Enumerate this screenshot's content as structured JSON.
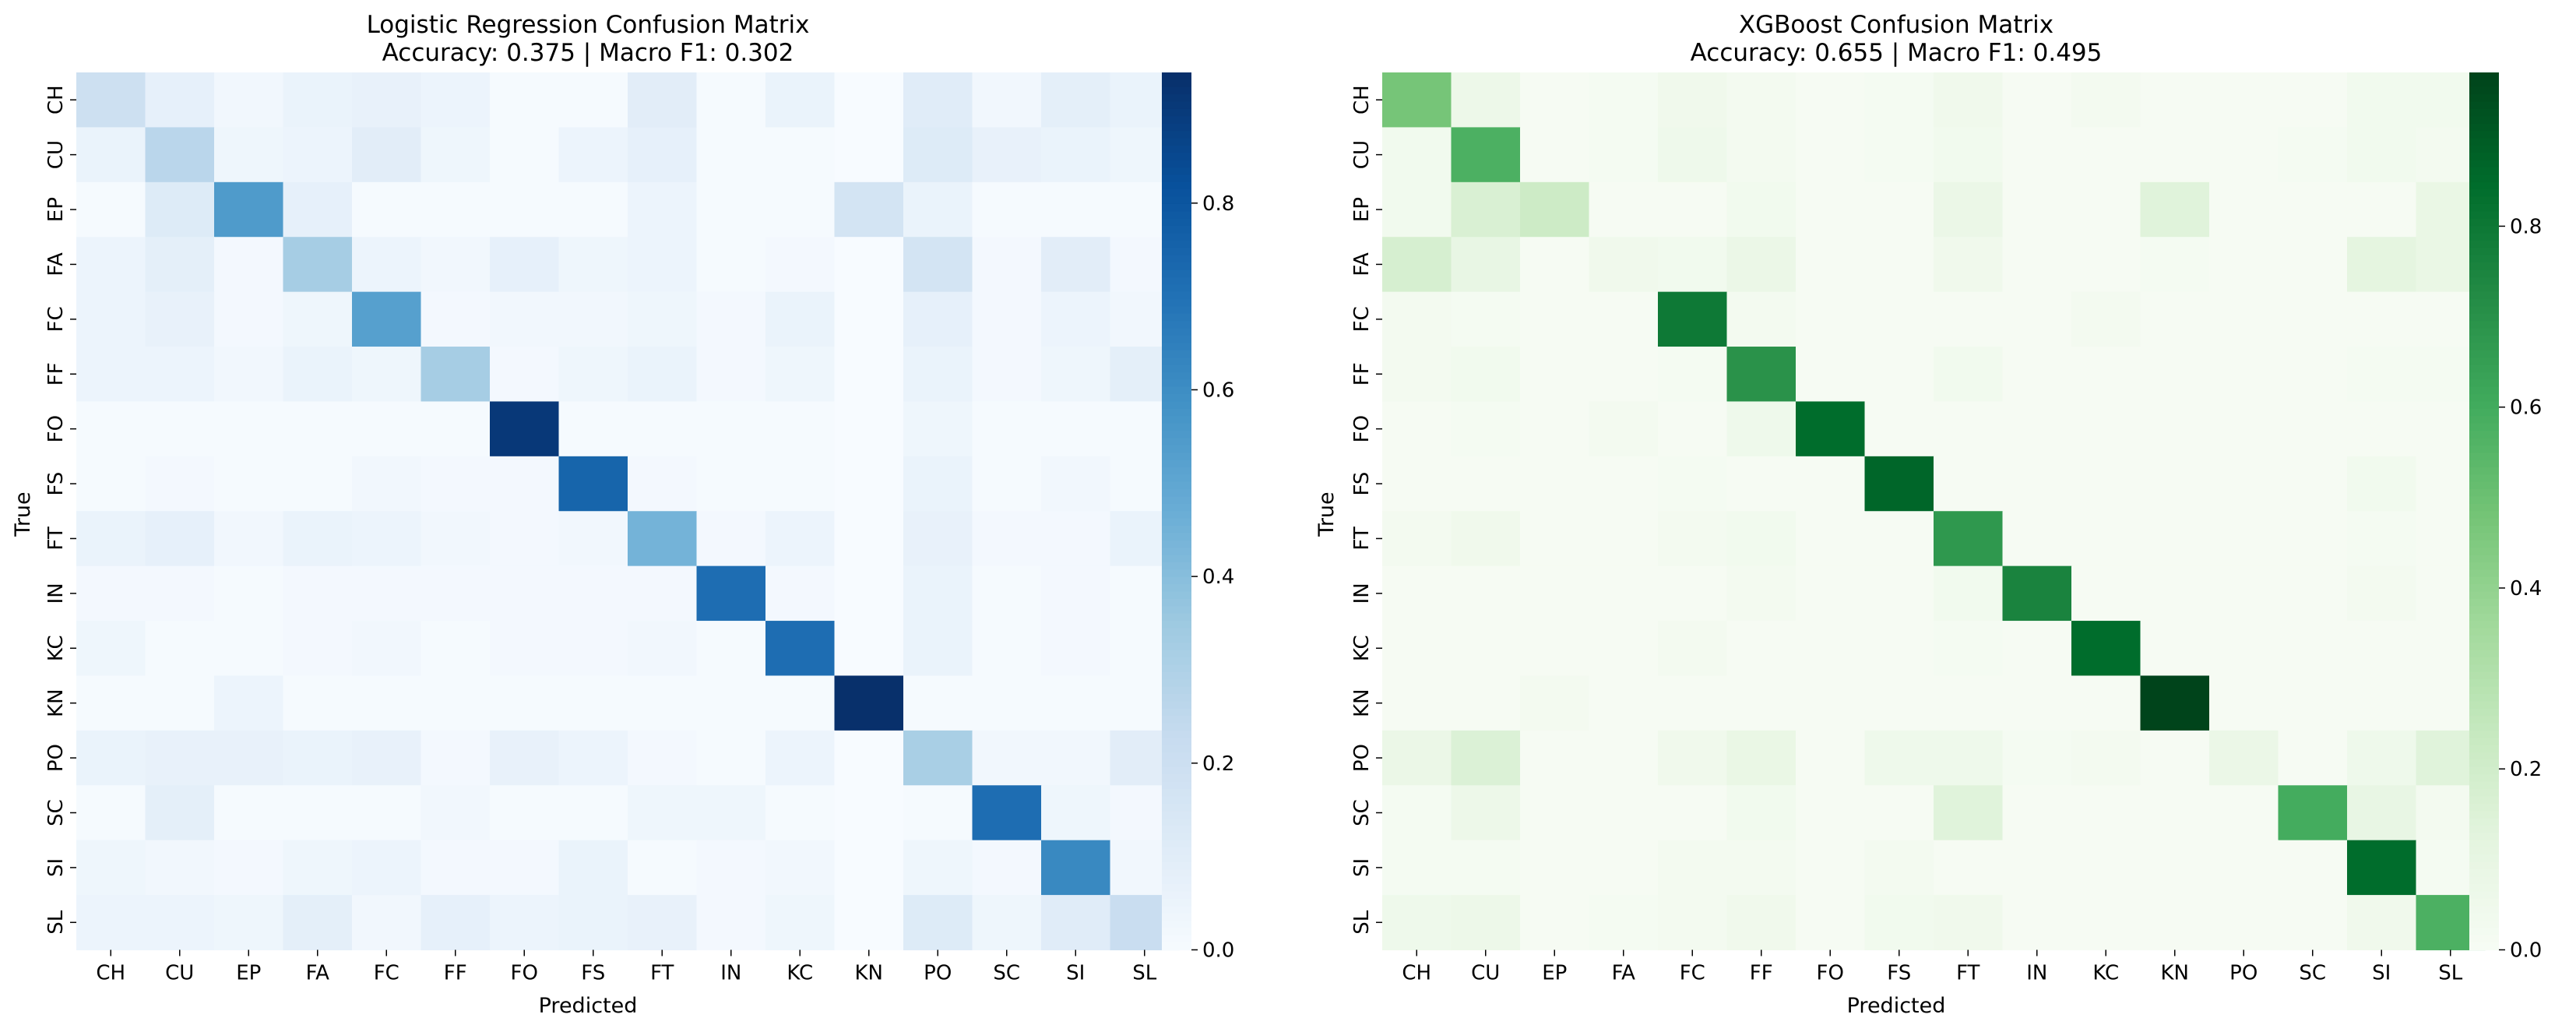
{
  "chart_data": [
    {
      "type": "heatmap",
      "title_line1": "Logistic Regression Confusion Matrix",
      "title_line2": "Accuracy: 0.375 | Macro F1: 0.302",
      "xlabel": "Predicted",
      "ylabel": "True",
      "x_categories": [
        "CH",
        "CU",
        "EP",
        "FA",
        "FC",
        "FF",
        "FO",
        "FS",
        "FT",
        "IN",
        "KC",
        "KN",
        "PO",
        "SC",
        "SI",
        "SL"
      ],
      "y_categories": [
        "CH",
        "CU",
        "EP",
        "FA",
        "FC",
        "FF",
        "FO",
        "FS",
        "FT",
        "IN",
        "KC",
        "KN",
        "PO",
        "SC",
        "SI",
        "SL"
      ],
      "colormap": "Blues",
      "colorbar": {
        "min": 0.0,
        "max": 0.94,
        "ticks": [
          "0.0",
          "0.2",
          "0.4",
          "0.6",
          "0.8"
        ]
      },
      "matrix": [
        [
          0.2,
          0.08,
          0.03,
          0.06,
          0.07,
          0.05,
          0.01,
          0.01,
          0.1,
          0.01,
          0.06,
          0.0,
          0.11,
          0.03,
          0.09,
          0.06
        ],
        [
          0.06,
          0.27,
          0.04,
          0.05,
          0.1,
          0.04,
          0.01,
          0.05,
          0.08,
          0.01,
          0.01,
          0.0,
          0.12,
          0.07,
          0.06,
          0.04
        ],
        [
          0.01,
          0.12,
          0.55,
          0.08,
          0.01,
          0.01,
          0.01,
          0.01,
          0.05,
          0.01,
          0.01,
          0.17,
          0.06,
          0.01,
          0.01,
          0.01
        ],
        [
          0.05,
          0.09,
          0.02,
          0.33,
          0.05,
          0.03,
          0.08,
          0.04,
          0.05,
          0.01,
          0.02,
          0.0,
          0.17,
          0.02,
          0.1,
          0.02
        ],
        [
          0.05,
          0.07,
          0.02,
          0.04,
          0.53,
          0.02,
          0.03,
          0.03,
          0.04,
          0.02,
          0.06,
          0.0,
          0.08,
          0.02,
          0.05,
          0.03
        ],
        [
          0.05,
          0.05,
          0.03,
          0.06,
          0.04,
          0.33,
          0.02,
          0.04,
          0.06,
          0.02,
          0.04,
          0.0,
          0.06,
          0.02,
          0.04,
          0.09
        ],
        [
          0.01,
          0.01,
          0.01,
          0.01,
          0.01,
          0.01,
          0.91,
          0.01,
          0.01,
          0.01,
          0.01,
          0.0,
          0.04,
          0.01,
          0.01,
          0.01
        ],
        [
          0.01,
          0.02,
          0.01,
          0.01,
          0.03,
          0.02,
          0.02,
          0.75,
          0.02,
          0.01,
          0.01,
          0.0,
          0.06,
          0.01,
          0.03,
          0.01
        ],
        [
          0.06,
          0.08,
          0.03,
          0.06,
          0.05,
          0.03,
          0.02,
          0.03,
          0.45,
          0.02,
          0.05,
          0.0,
          0.07,
          0.02,
          0.02,
          0.06
        ],
        [
          0.02,
          0.02,
          0.01,
          0.02,
          0.02,
          0.02,
          0.02,
          0.02,
          0.02,
          0.72,
          0.02,
          0.0,
          0.06,
          0.01,
          0.02,
          0.01
        ],
        [
          0.04,
          0.01,
          0.01,
          0.02,
          0.03,
          0.01,
          0.02,
          0.02,
          0.03,
          0.01,
          0.72,
          0.0,
          0.06,
          0.01,
          0.02,
          0.01
        ],
        [
          0.01,
          0.01,
          0.05,
          0.01,
          0.01,
          0.01,
          0.01,
          0.01,
          0.01,
          0.01,
          0.01,
          0.94,
          0.01,
          0.01,
          0.01,
          0.01
        ],
        [
          0.06,
          0.07,
          0.07,
          0.06,
          0.07,
          0.02,
          0.07,
          0.05,
          0.02,
          0.01,
          0.05,
          0.0,
          0.32,
          0.03,
          0.03,
          0.1
        ],
        [
          0.01,
          0.09,
          0.01,
          0.01,
          0.01,
          0.03,
          0.01,
          0.01,
          0.04,
          0.04,
          0.01,
          0.0,
          0.01,
          0.72,
          0.04,
          0.02
        ],
        [
          0.04,
          0.03,
          0.02,
          0.04,
          0.05,
          0.02,
          0.02,
          0.06,
          0.01,
          0.02,
          0.03,
          0.0,
          0.04,
          0.02,
          0.62,
          0.03
        ],
        [
          0.05,
          0.05,
          0.04,
          0.09,
          0.03,
          0.08,
          0.05,
          0.06,
          0.07,
          0.02,
          0.04,
          0.0,
          0.12,
          0.04,
          0.11,
          0.22
        ]
      ]
    },
    {
      "type": "heatmap",
      "title_line1": "XGBoost Confusion Matrix",
      "title_line2": "Accuracy: 0.655 | Macro F1: 0.495",
      "xlabel": "Predicted",
      "ylabel": "True",
      "x_categories": [
        "CH",
        "CU",
        "EP",
        "FA",
        "FC",
        "FF",
        "FO",
        "FS",
        "FT",
        "IN",
        "KC",
        "KN",
        "PO",
        "SC",
        "SI",
        "SL"
      ],
      "y_categories": [
        "CH",
        "CU",
        "EP",
        "FA",
        "FC",
        "FF",
        "FO",
        "FS",
        "FT",
        "IN",
        "KC",
        "KN",
        "PO",
        "SC",
        "SI",
        "SL"
      ],
      "colormap": "Greens",
      "colorbar": {
        "min": 0.0,
        "max": 0.97,
        "ticks": [
          "0.0",
          "0.2",
          "0.4",
          "0.6",
          "0.8"
        ]
      },
      "matrix": [
        [
          0.48,
          0.07,
          0.01,
          0.02,
          0.05,
          0.03,
          0.01,
          0.02,
          0.05,
          0.01,
          0.03,
          0.01,
          0.01,
          0.01,
          0.04,
          0.04
        ],
        [
          0.04,
          0.58,
          0.01,
          0.02,
          0.06,
          0.03,
          0.01,
          0.02,
          0.04,
          0.01,
          0.01,
          0.01,
          0.01,
          0.02,
          0.04,
          0.03
        ],
        [
          0.04,
          0.17,
          0.22,
          0.01,
          0.01,
          0.04,
          0.01,
          0.01,
          0.08,
          0.01,
          0.01,
          0.14,
          0.01,
          0.01,
          0.01,
          0.09
        ],
        [
          0.18,
          0.1,
          0.01,
          0.05,
          0.04,
          0.08,
          0.01,
          0.01,
          0.05,
          0.01,
          0.01,
          0.02,
          0.01,
          0.01,
          0.12,
          0.09
        ],
        [
          0.03,
          0.02,
          0.01,
          0.01,
          0.8,
          0.03,
          0.01,
          0.01,
          0.01,
          0.01,
          0.03,
          0.01,
          0.01,
          0.01,
          0.01,
          0.01
        ],
        [
          0.03,
          0.04,
          0.01,
          0.01,
          0.02,
          0.7,
          0.01,
          0.01,
          0.04,
          0.01,
          0.01,
          0.01,
          0.01,
          0.01,
          0.02,
          0.02
        ],
        [
          0.01,
          0.02,
          0.01,
          0.03,
          0.01,
          0.06,
          0.85,
          0.01,
          0.01,
          0.01,
          0.01,
          0.01,
          0.01,
          0.01,
          0.01,
          0.01
        ],
        [
          0.01,
          0.01,
          0.01,
          0.01,
          0.02,
          0.01,
          0.01,
          0.87,
          0.01,
          0.01,
          0.01,
          0.01,
          0.01,
          0.01,
          0.04,
          0.01
        ],
        [
          0.03,
          0.05,
          0.01,
          0.01,
          0.03,
          0.04,
          0.01,
          0.01,
          0.68,
          0.01,
          0.01,
          0.01,
          0.01,
          0.01,
          0.02,
          0.01
        ],
        [
          0.01,
          0.01,
          0.01,
          0.01,
          0.01,
          0.03,
          0.01,
          0.01,
          0.04,
          0.76,
          0.01,
          0.01,
          0.01,
          0.01,
          0.03,
          0.01
        ],
        [
          0.01,
          0.01,
          0.01,
          0.01,
          0.03,
          0.01,
          0.01,
          0.01,
          0.02,
          0.01,
          0.85,
          0.01,
          0.01,
          0.01,
          0.01,
          0.01
        ],
        [
          0.01,
          0.01,
          0.03,
          0.01,
          0.01,
          0.01,
          0.01,
          0.01,
          0.01,
          0.01,
          0.01,
          0.97,
          0.01,
          0.01,
          0.01,
          0.01
        ],
        [
          0.08,
          0.16,
          0.01,
          0.01,
          0.05,
          0.09,
          0.01,
          0.06,
          0.06,
          0.02,
          0.03,
          0.01,
          0.08,
          0.01,
          0.06,
          0.14
        ],
        [
          0.02,
          0.07,
          0.01,
          0.01,
          0.01,
          0.04,
          0.01,
          0.01,
          0.14,
          0.01,
          0.01,
          0.01,
          0.01,
          0.6,
          0.1,
          0.03
        ],
        [
          0.02,
          0.02,
          0.01,
          0.01,
          0.03,
          0.03,
          0.01,
          0.03,
          0.01,
          0.01,
          0.01,
          0.01,
          0.01,
          0.01,
          0.85,
          0.02
        ],
        [
          0.06,
          0.07,
          0.01,
          0.02,
          0.03,
          0.05,
          0.01,
          0.04,
          0.05,
          0.01,
          0.01,
          0.01,
          0.01,
          0.01,
          0.05,
          0.58
        ]
      ]
    }
  ]
}
